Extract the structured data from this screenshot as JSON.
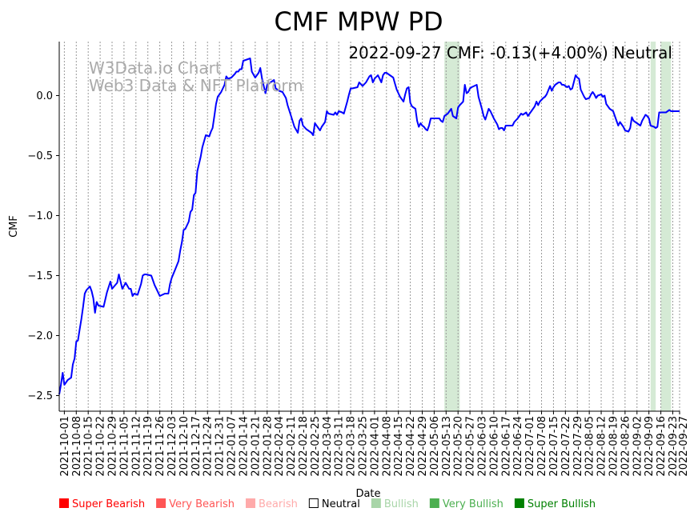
{
  "chart_data": {
    "type": "line",
    "title": "CMF MPW PD",
    "annotation": "2022-09-27 CMF: -0.13(+4.00%) Neutral",
    "watermark": [
      "W3Data.io Chart",
      "Web3 Data & NFT Platform"
    ],
    "xlabel": "Date",
    "ylabel": "CMF",
    "x_unit": "days since 2021-10-01",
    "x_origin": "2021-10-01",
    "xlim": [
      -3,
      361
    ],
    "ylim": [
      -2.63,
      0.45
    ],
    "yticks": [
      0.0,
      -0.5,
      -1.0,
      -1.5,
      -2.0,
      -2.5
    ],
    "ytick_labels": [
      "0.0",
      "−0.5",
      "−1.0",
      "−1.5",
      "−2.0",
      "−2.5"
    ],
    "xtick_labels": [
      "2021-10-01",
      "2021-10-08",
      "2021-10-15",
      "2021-10-22",
      "2021-10-29",
      "2021-11-05",
      "2021-11-12",
      "2021-11-19",
      "2021-11-26",
      "2021-12-03",
      "2021-12-10",
      "2021-12-17",
      "2021-12-24",
      "2021-12-31",
      "2022-01-07",
      "2022-01-14",
      "2022-01-21",
      "2022-01-28",
      "2022-02-04",
      "2022-02-11",
      "2022-02-18",
      "2022-02-25",
      "2022-03-04",
      "2022-03-11",
      "2022-03-18",
      "2022-03-25",
      "2022-04-01",
      "2022-04-08",
      "2022-04-15",
      "2022-04-22",
      "2022-04-29",
      "2022-05-06",
      "2022-05-13",
      "2022-05-20",
      "2022-05-27",
      "2022-06-03",
      "2022-06-10",
      "2022-06-17",
      "2022-06-24",
      "2022-07-01",
      "2022-07-08",
      "2022-07-15",
      "2022-07-22",
      "2022-07-29",
      "2022-08-05",
      "2022-08-12",
      "2022-08-19",
      "2022-08-26",
      "2022-09-02",
      "2022-09-09",
      "2022-09-16",
      "2022-09-23",
      "2022-09-27"
    ],
    "grid": "vertical-dotted",
    "series": [
      {
        "name": "CMF",
        "color": "#0000ff",
        "points": [
          [
            -3,
            -2.49
          ],
          [
            -2,
            -2.41
          ],
          [
            -1,
            -2.31
          ],
          [
            0,
            -2.41
          ],
          [
            2,
            -2.37
          ],
          [
            4,
            -2.35
          ],
          [
            5,
            -2.24
          ],
          [
            6,
            -2.19
          ],
          [
            7,
            -2.05
          ],
          [
            8,
            -2.04
          ],
          [
            9,
            -1.95
          ],
          [
            10,
            -1.86
          ],
          [
            11,
            -1.76
          ],
          [
            12,
            -1.65
          ],
          [
            13,
            -1.62
          ],
          [
            15,
            -1.59
          ],
          [
            16,
            -1.63
          ],
          [
            17,
            -1.69
          ],
          [
            18,
            -1.81
          ],
          [
            19,
            -1.72
          ],
          [
            20,
            -1.75
          ],
          [
            23,
            -1.76
          ],
          [
            25,
            -1.64
          ],
          [
            27,
            -1.55
          ],
          [
            28,
            -1.61
          ],
          [
            31,
            -1.56
          ],
          [
            32,
            -1.49
          ],
          [
            34,
            -1.61
          ],
          [
            36,
            -1.56
          ],
          [
            38,
            -1.61
          ],
          [
            39,
            -1.61
          ],
          [
            40,
            -1.67
          ],
          [
            41,
            -1.65
          ],
          [
            43,
            -1.66
          ],
          [
            45,
            -1.57
          ],
          [
            46,
            -1.5
          ],
          [
            47,
            -1.49
          ],
          [
            48,
            -1.49
          ],
          [
            51,
            -1.5
          ],
          [
            53,
            -1.58
          ],
          [
            54,
            -1.61
          ],
          [
            56,
            -1.67
          ],
          [
            59,
            -1.65
          ],
          [
            61,
            -1.65
          ],
          [
            62,
            -1.57
          ],
          [
            63,
            -1.52
          ],
          [
            65,
            -1.45
          ],
          [
            67,
            -1.38
          ],
          [
            68,
            -1.29
          ],
          [
            69,
            -1.22
          ],
          [
            70,
            -1.12
          ],
          [
            71,
            -1.11
          ],
          [
            73,
            -1.05
          ],
          [
            74,
            -0.97
          ],
          [
            75,
            -0.95
          ],
          [
            76,
            -0.83
          ],
          [
            77,
            -0.81
          ],
          [
            78,
            -0.63
          ],
          [
            79,
            -0.57
          ],
          [
            80,
            -0.51
          ],
          [
            81,
            -0.43
          ],
          [
            83,
            -0.33
          ],
          [
            85,
            -0.34
          ],
          [
            86,
            -0.3
          ],
          [
            87,
            -0.27
          ],
          [
            88,
            -0.17
          ],
          [
            89,
            -0.07
          ],
          [
            90,
            -0.01
          ],
          [
            92,
            0.03
          ],
          [
            94,
            0.09
          ],
          [
            95,
            0.16
          ],
          [
            96,
            0.14
          ],
          [
            98,
            0.15
          ],
          [
            100,
            0.18
          ],
          [
            101,
            0.2
          ],
          [
            102,
            0.2
          ],
          [
            103,
            0.22
          ],
          [
            104,
            0.22
          ],
          [
            105,
            0.29
          ],
          [
            107,
            0.3
          ],
          [
            109,
            0.31
          ],
          [
            110,
            0.2
          ],
          [
            112,
            0.15
          ],
          [
            114,
            0.19
          ],
          [
            115,
            0.23
          ],
          [
            116,
            0.14
          ],
          [
            118,
            0.02
          ],
          [
            119,
            0.09
          ],
          [
            121,
            0.11
          ],
          [
            123,
            0.13
          ],
          [
            124,
            0.06
          ],
          [
            126,
            0.04
          ],
          [
            128,
            0.03
          ],
          [
            130,
            -0.02
          ],
          [
            131,
            -0.08
          ],
          [
            133,
            -0.17
          ],
          [
            135,
            -0.26
          ],
          [
            137,
            -0.31
          ],
          [
            138,
            -0.21
          ],
          [
            139,
            -0.19
          ],
          [
            140,
            -0.25
          ],
          [
            142,
            -0.28
          ],
          [
            145,
            -0.31
          ],
          [
            146,
            -0.33
          ],
          [
            147,
            -0.23
          ],
          [
            148,
            -0.25
          ],
          [
            150,
            -0.29
          ],
          [
            151,
            -0.26
          ],
          [
            153,
            -0.22
          ],
          [
            154,
            -0.13
          ],
          [
            155,
            -0.15
          ],
          [
            158,
            -0.16
          ],
          [
            159,
            -0.14
          ],
          [
            160,
            -0.16
          ],
          [
            161,
            -0.13
          ],
          [
            163,
            -0.14
          ],
          [
            164,
            -0.15
          ],
          [
            166,
            -0.05
          ],
          [
            167,
            0.01
          ],
          [
            168,
            0.06
          ],
          [
            169,
            0.06
          ],
          [
            172,
            0.07
          ],
          [
            173,
            0.11
          ],
          [
            175,
            0.08
          ],
          [
            177,
            0.11
          ],
          [
            179,
            0.16
          ],
          [
            180,
            0.17
          ],
          [
            181,
            0.11
          ],
          [
            182,
            0.14
          ],
          [
            184,
            0.17
          ],
          [
            185,
            0.14
          ],
          [
            186,
            0.11
          ],
          [
            187,
            0.17
          ],
          [
            188,
            0.19
          ],
          [
            189,
            0.19
          ],
          [
            190,
            0.18
          ],
          [
            192,
            0.16
          ],
          [
            193,
            0.15
          ],
          [
            194,
            0.1
          ],
          [
            195,
            0.05
          ],
          [
            196,
            0.02
          ],
          [
            197,
            -0.01
          ],
          [
            199,
            -0.05
          ],
          [
            200,
            0.01
          ],
          [
            201,
            0.06
          ],
          [
            202,
            0.07
          ],
          [
            203,
            -0.06
          ],
          [
            204,
            -0.09
          ],
          [
            206,
            -0.11
          ],
          [
            207,
            -0.21
          ],
          [
            208,
            -0.26
          ],
          [
            209,
            -0.23
          ],
          [
            210,
            -0.25
          ],
          [
            211,
            -0.26
          ],
          [
            212,
            -0.28
          ],
          [
            213,
            -0.29
          ],
          [
            214,
            -0.25
          ],
          [
            215,
            -0.19
          ],
          [
            216,
            -0.19
          ],
          [
            217,
            -0.19
          ],
          [
            218,
            -0.19
          ],
          [
            220,
            -0.19
          ],
          [
            221,
            -0.21
          ],
          [
            222,
            -0.22
          ],
          [
            223,
            -0.17
          ],
          [
            225,
            -0.15
          ],
          [
            227,
            -0.11
          ],
          [
            228,
            -0.17
          ],
          [
            230,
            -0.19
          ],
          [
            231,
            -0.1
          ],
          [
            232,
            -0.08
          ],
          [
            234,
            -0.05
          ],
          [
            235,
            0.09
          ],
          [
            236,
            0.02
          ],
          [
            237,
            0.03
          ],
          [
            238,
            0.06
          ],
          [
            239,
            0.07
          ],
          [
            242,
            0.09
          ],
          [
            243,
            -0.01
          ],
          [
            245,
            -0.11
          ],
          [
            246,
            -0.17
          ],
          [
            247,
            -0.2
          ],
          [
            249,
            -0.11
          ],
          [
            250,
            -0.13
          ],
          [
            252,
            -0.19
          ],
          [
            254,
            -0.24
          ],
          [
            255,
            -0.28
          ],
          [
            256,
            -0.27
          ],
          [
            257,
            -0.27
          ],
          [
            258,
            -0.29
          ],
          [
            259,
            -0.25
          ],
          [
            260,
            -0.25
          ],
          [
            263,
            -0.25
          ],
          [
            264,
            -0.22
          ],
          [
            266,
            -0.19
          ],
          [
            268,
            -0.15
          ],
          [
            269,
            -0.16
          ],
          [
            271,
            -0.14
          ],
          [
            272,
            -0.17
          ],
          [
            274,
            -0.13
          ],
          [
            276,
            -0.09
          ],
          [
            277,
            -0.05
          ],
          [
            278,
            -0.08
          ],
          [
            279,
            -0.05
          ],
          [
            281,
            -0.02
          ],
          [
            282,
            -0.01
          ],
          [
            283,
            0.01
          ],
          [
            285,
            0.08
          ],
          [
            286,
            0.04
          ],
          [
            287,
            0.07
          ],
          [
            288,
            0.09
          ],
          [
            289,
            0.1
          ],
          [
            290,
            0.11
          ],
          [
            291,
            0.11
          ],
          [
            292,
            0.09
          ],
          [
            293,
            0.09
          ],
          [
            295,
            0.07
          ],
          [
            296,
            0.08
          ],
          [
            297,
            0.05
          ],
          [
            298,
            0.06
          ],
          [
            300,
            0.17
          ],
          [
            301,
            0.15
          ],
          [
            302,
            0.14
          ],
          [
            303,
            0.05
          ],
          [
            305,
            -0.01
          ],
          [
            306,
            -0.03
          ],
          [
            308,
            -0.02
          ],
          [
            309,
            0.01
          ],
          [
            310,
            0.03
          ],
          [
            311,
            0.01
          ],
          [
            312,
            -0.02
          ],
          [
            313,
            0.0
          ],
          [
            315,
            0.01
          ],
          [
            316,
            -0.01
          ],
          [
            317,
            0.0
          ],
          [
            318,
            -0.07
          ],
          [
            320,
            -0.11
          ],
          [
            322,
            -0.13
          ],
          [
            323,
            -0.17
          ],
          [
            324,
            -0.21
          ],
          [
            325,
            -0.25
          ],
          [
            326,
            -0.22
          ],
          [
            328,
            -0.26
          ],
          [
            329,
            -0.29
          ],
          [
            331,
            -0.3
          ],
          [
            332,
            -0.27
          ],
          [
            333,
            -0.18
          ],
          [
            334,
            -0.21
          ],
          [
            335,
            -0.22
          ],
          [
            337,
            -0.24
          ],
          [
            338,
            -0.25
          ],
          [
            339,
            -0.21
          ],
          [
            341,
            -0.16
          ],
          [
            342,
            -0.17
          ],
          [
            343,
            -0.19
          ],
          [
            344,
            -0.25
          ],
          [
            346,
            -0.26
          ],
          [
            347,
            -0.27
          ],
          [
            348,
            -0.26
          ],
          [
            349,
            -0.14
          ],
          [
            351,
            -0.14
          ],
          [
            353,
            -0.14
          ],
          [
            354,
            -0.13
          ],
          [
            355,
            -0.12
          ],
          [
            356,
            -0.13
          ],
          [
            359,
            -0.13
          ],
          [
            361,
            -0.13
          ]
        ]
      }
    ],
    "shaded_spans": [
      {
        "start": 223,
        "end": 232,
        "category": "Bullish",
        "color": "#d5ead5"
      },
      {
        "start": 344,
        "end": 347,
        "category": "Bullish",
        "color": "#d5ead5"
      },
      {
        "start": 350,
        "end": 356,
        "category": "Bullish",
        "color": "#d5ead5"
      }
    ],
    "legend": {
      "placement": "bottom",
      "items": [
        {
          "label": "Super Bearish",
          "color": "#ff0000"
        },
        {
          "label": "Very Bearish",
          "color": "#ff5555"
        },
        {
          "label": "Bearish",
          "color": "#ffaaaa"
        },
        {
          "label": "Neutral",
          "color": "#000000",
          "hollow": true
        },
        {
          "label": "Bullish",
          "color": "#a8d5a8"
        },
        {
          "label": "Very Bullish",
          "color": "#4caf50"
        },
        {
          "label": "Super Bullish",
          "color": "#008000"
        }
      ]
    }
  }
}
